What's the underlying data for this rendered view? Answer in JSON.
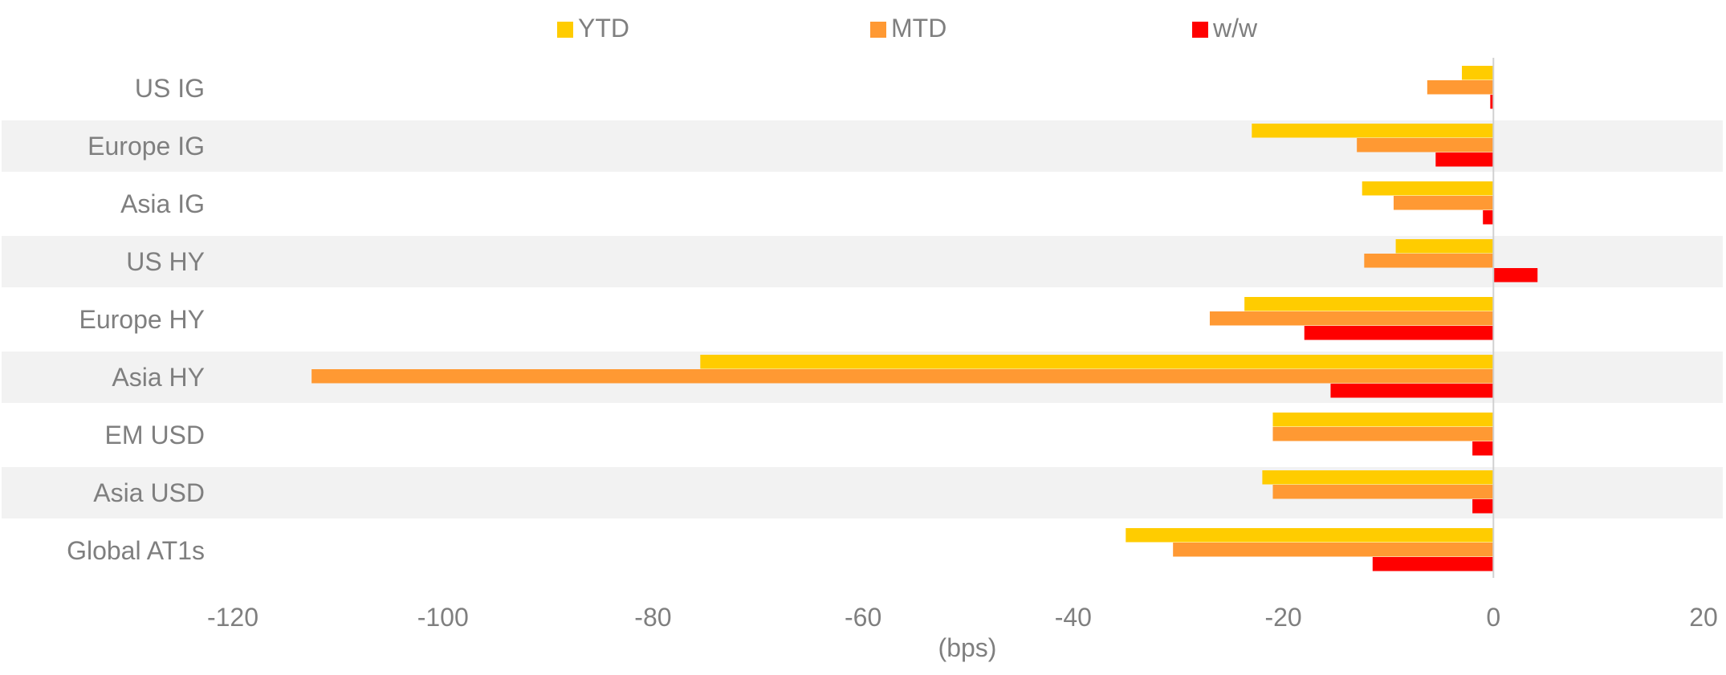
{
  "chart_data": {
    "type": "bar",
    "orientation": "horizontal",
    "categories": [
      "US IG",
      "Europe IG",
      "Asia IG",
      "US HY",
      "Europe HY",
      "Asia HY",
      "EM USD",
      "Asia USD",
      "Global AT1s"
    ],
    "series": [
      {
        "name": "YTD",
        "color": "#FFCC00",
        "values": [
          -3,
          -23,
          -12.5,
          -9.3,
          -23.7,
          -75.5,
          -21,
          -22,
          -35
        ]
      },
      {
        "name": "MTD",
        "color": "#FF9933",
        "values": [
          -6.3,
          -13,
          -9.5,
          -12.3,
          -27,
          -112.5,
          -21,
          -21,
          -30.5
        ]
      },
      {
        "name": "w/w",
        "color": "#FF0000",
        "values": [
          -0.3,
          -5.5,
          -1,
          4.2,
          -18,
          -15.5,
          -2,
          -2,
          -11.5
        ]
      }
    ],
    "xlabel": "(bps)",
    "xlim": [
      -120,
      20
    ],
    "xticks": [
      "-120",
      "-100",
      "-80",
      "-60",
      "-40",
      "-20",
      "0",
      "20"
    ],
    "legend_position": "top",
    "alternating_row_shading": true,
    "shade_color": "#F2F2F2"
  }
}
